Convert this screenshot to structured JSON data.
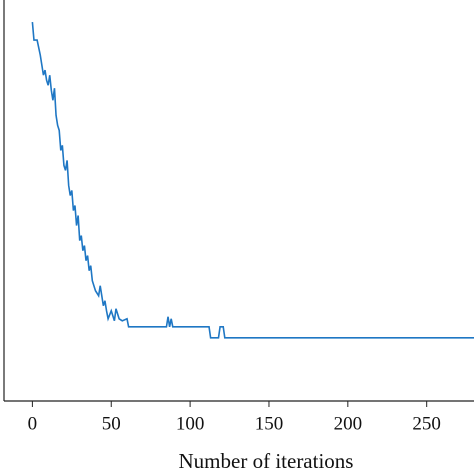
{
  "chart_data": {
    "type": "line",
    "xlabel": "Number of iterations",
    "x": [
      0,
      1,
      3,
      5,
      6,
      7,
      8,
      9,
      10,
      11,
      12,
      13,
      14,
      15,
      16,
      17,
      18,
      19,
      20,
      21,
      22,
      23,
      24,
      25,
      26,
      27,
      28,
      29,
      30,
      31,
      32,
      33,
      34,
      35,
      36,
      37,
      38,
      40,
      42,
      43,
      45,
      46,
      47,
      48,
      50,
      52,
      53,
      55,
      57,
      60,
      61,
      62,
      85,
      86,
      87,
      88,
      89,
      112,
      113,
      118,
      119,
      121,
      122,
      280
    ],
    "series": [
      {
        "color": "#1f77c4",
        "values": [
          378,
          360,
          360,
          345,
          335,
          325,
          330,
          320,
          315,
          325,
          310,
          300,
          312,
          285,
          275,
          270,
          250,
          255,
          235,
          230,
          240,
          215,
          205,
          210,
          190,
          195,
          175,
          185,
          160,
          165,
          150,
          155,
          140,
          145,
          130,
          135,
          120,
          110,
          105,
          115,
          95,
          100,
          90,
          82,
          90,
          80,
          92,
          82,
          80,
          82,
          74,
          74,
          74,
          84,
          74,
          82,
          74,
          74,
          63,
          63,
          74,
          74,
          63,
          63
        ]
      }
    ],
    "xlim": [
      -18,
      280
    ],
    "xticks": [
      0,
      50,
      100,
      150,
      200,
      250
    ],
    "ylim": [
      0,
      400
    ]
  }
}
